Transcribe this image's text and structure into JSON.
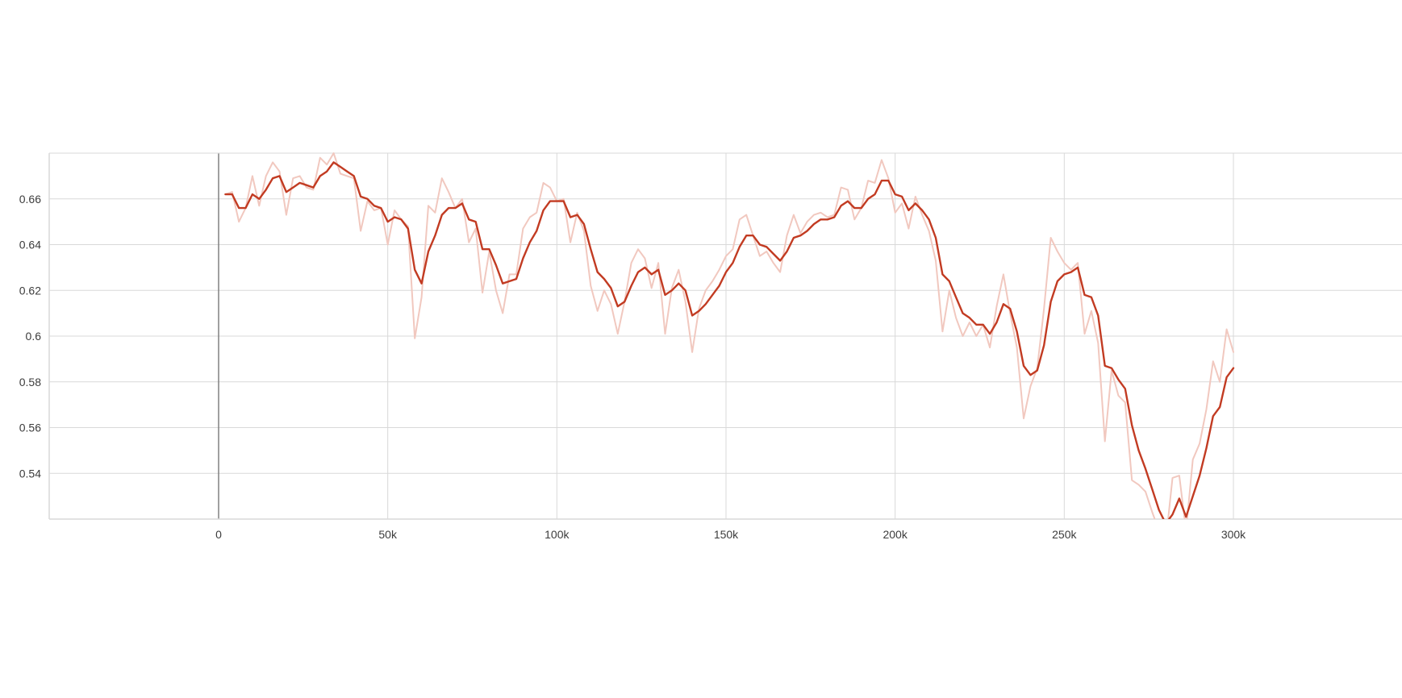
{
  "chart_data": {
    "type": "line",
    "title": "",
    "xlabel": "",
    "ylabel": "",
    "xlim": [
      -50000,
      350000
    ],
    "ylim": [
      0.52,
      0.68
    ],
    "x_ticks": [
      0,
      50000,
      100000,
      150000,
      200000,
      250000,
      300000
    ],
    "x_tick_labels": [
      "0",
      "50k",
      "100k",
      "150k",
      "200k",
      "250k",
      "300k"
    ],
    "y_ticks": [
      0.54,
      0.56,
      0.58,
      0.6,
      0.62,
      0.64,
      0.66
    ],
    "y_tick_labels": [
      "0.54",
      "0.56",
      "0.58",
      "0.6",
      "0.62",
      "0.64",
      "0.66"
    ],
    "grid": true,
    "legend": "none",
    "colors": {
      "smoothed": "#c23b22",
      "raw": "#f1c8bf",
      "grid": "#d9d9d9",
      "zero_line": "#808080"
    },
    "series": [
      {
        "role": "raw",
        "x": [
          2000,
          4000,
          6000,
          8000,
          10000,
          12000,
          14000,
          16000,
          18000,
          20000,
          22000,
          24000,
          26000,
          28000,
          30000,
          32000,
          34000,
          36000,
          38000,
          40000,
          42000,
          44000,
          46000,
          48000,
          50000,
          52000,
          54000,
          56000,
          58000,
          60000,
          62000,
          64000,
          66000,
          68000,
          70000,
          72000,
          74000,
          76000,
          78000,
          80000,
          82000,
          84000,
          86000,
          88000,
          90000,
          92000,
          94000,
          96000,
          98000,
          100000,
          102000,
          104000,
          106000,
          108000,
          110000,
          112000,
          114000,
          116000,
          118000,
          120000,
          122000,
          124000,
          126000,
          128000,
          130000,
          132000,
          134000,
          136000,
          138000,
          140000,
          142000,
          144000,
          146000,
          148000,
          150000,
          152000,
          154000,
          156000,
          158000,
          160000,
          162000,
          164000,
          166000,
          168000,
          170000,
          172000,
          174000,
          176000,
          178000,
          180000,
          182000,
          184000,
          186000,
          188000,
          190000,
          192000,
          194000,
          196000,
          198000,
          200000,
          202000,
          204000,
          206000,
          208000,
          210000,
          212000,
          214000,
          216000,
          218000,
          220000,
          222000,
          224000,
          226000,
          228000,
          230000,
          232000,
          234000,
          236000,
          238000,
          240000,
          242000,
          244000,
          246000,
          248000,
          250000,
          252000,
          254000,
          256000,
          258000,
          260000,
          262000,
          264000,
          266000,
          268000,
          270000,
          272000,
          274000,
          276000,
          278000,
          280000,
          282000,
          284000,
          286000,
          288000,
          290000,
          292000,
          294000,
          296000,
          298000,
          300000
        ],
        "y": [
          0.662,
          0.663,
          0.65,
          0.656,
          0.67,
          0.657,
          0.67,
          0.676,
          0.672,
          0.653,
          0.669,
          0.67,
          0.665,
          0.664,
          0.678,
          0.675,
          0.68,
          0.671,
          0.67,
          0.669,
          0.646,
          0.659,
          0.655,
          0.656,
          0.64,
          0.655,
          0.651,
          0.648,
          0.599,
          0.617,
          0.657,
          0.654,
          0.669,
          0.663,
          0.656,
          0.66,
          0.641,
          0.647,
          0.619,
          0.637,
          0.62,
          0.61,
          0.627,
          0.627,
          0.647,
          0.652,
          0.654,
          0.667,
          0.665,
          0.659,
          0.66,
          0.641,
          0.654,
          0.646,
          0.622,
          0.611,
          0.62,
          0.614,
          0.601,
          0.615,
          0.632,
          0.638,
          0.634,
          0.621,
          0.632,
          0.601,
          0.621,
          0.629,
          0.615,
          0.593,
          0.612,
          0.62,
          0.624,
          0.629,
          0.635,
          0.638,
          0.651,
          0.653,
          0.644,
          0.635,
          0.637,
          0.632,
          0.628,
          0.644,
          0.653,
          0.645,
          0.65,
          0.653,
          0.654,
          0.652,
          0.653,
          0.665,
          0.664,
          0.651,
          0.656,
          0.668,
          0.667,
          0.677,
          0.669,
          0.654,
          0.658,
          0.647,
          0.661,
          0.653,
          0.646,
          0.633,
          0.602,
          0.62,
          0.608,
          0.6,
          0.606,
          0.6,
          0.605,
          0.595,
          0.613,
          0.627,
          0.61,
          0.595,
          0.564,
          0.578,
          0.586,
          0.612,
          0.643,
          0.637,
          0.632,
          0.629,
          0.632,
          0.601,
          0.611,
          0.597,
          0.554,
          0.585,
          0.574,
          0.571,
          0.537,
          0.535,
          0.532,
          0.523,
          0.515,
          0.51,
          0.538,
          0.539,
          0.515,
          0.546,
          0.553,
          0.568,
          0.589,
          0.58,
          0.603,
          0.593
        ]
      },
      {
        "role": "smoothed",
        "x": [
          2000,
          4000,
          6000,
          8000,
          10000,
          12000,
          14000,
          16000,
          18000,
          20000,
          22000,
          24000,
          26000,
          28000,
          30000,
          32000,
          34000,
          36000,
          38000,
          40000,
          42000,
          44000,
          46000,
          48000,
          50000,
          52000,
          54000,
          56000,
          58000,
          60000,
          62000,
          64000,
          66000,
          68000,
          70000,
          72000,
          74000,
          76000,
          78000,
          80000,
          82000,
          84000,
          86000,
          88000,
          90000,
          92000,
          94000,
          96000,
          98000,
          100000,
          102000,
          104000,
          106000,
          108000,
          110000,
          112000,
          114000,
          116000,
          118000,
          120000,
          122000,
          124000,
          126000,
          128000,
          130000,
          132000,
          134000,
          136000,
          138000,
          140000,
          142000,
          144000,
          146000,
          148000,
          150000,
          152000,
          154000,
          156000,
          158000,
          160000,
          162000,
          164000,
          166000,
          168000,
          170000,
          172000,
          174000,
          176000,
          178000,
          180000,
          182000,
          184000,
          186000,
          188000,
          190000,
          192000,
          194000,
          196000,
          198000,
          200000,
          202000,
          204000,
          206000,
          208000,
          210000,
          212000,
          214000,
          216000,
          218000,
          220000,
          222000,
          224000,
          226000,
          228000,
          230000,
          232000,
          234000,
          236000,
          238000,
          240000,
          242000,
          244000,
          246000,
          248000,
          250000,
          252000,
          254000,
          256000,
          258000,
          260000,
          262000,
          264000,
          266000,
          268000,
          270000,
          272000,
          274000,
          276000,
          278000,
          280000,
          282000,
          284000,
          286000,
          288000,
          290000,
          292000,
          294000,
          296000,
          298000,
          300000
        ],
        "y": [
          0.662,
          0.662,
          0.656,
          0.656,
          0.662,
          0.66,
          0.664,
          0.669,
          0.67,
          0.663,
          0.665,
          0.667,
          0.666,
          0.665,
          0.67,
          0.672,
          0.676,
          0.674,
          0.672,
          0.67,
          0.661,
          0.66,
          0.657,
          0.656,
          0.65,
          0.652,
          0.651,
          0.647,
          0.629,
          0.623,
          0.637,
          0.644,
          0.653,
          0.656,
          0.656,
          0.658,
          0.651,
          0.65,
          0.638,
          0.638,
          0.631,
          0.623,
          0.624,
          0.625,
          0.634,
          0.641,
          0.646,
          0.655,
          0.659,
          0.659,
          0.659,
          0.652,
          0.653,
          0.649,
          0.638,
          0.628,
          0.625,
          0.621,
          0.613,
          0.615,
          0.622,
          0.628,
          0.63,
          0.627,
          0.629,
          0.618,
          0.62,
          0.623,
          0.62,
          0.609,
          0.611,
          0.614,
          0.618,
          0.622,
          0.628,
          0.632,
          0.639,
          0.644,
          0.644,
          0.64,
          0.639,
          0.636,
          0.633,
          0.637,
          0.643,
          0.644,
          0.646,
          0.649,
          0.651,
          0.651,
          0.652,
          0.657,
          0.659,
          0.656,
          0.656,
          0.66,
          0.662,
          0.668,
          0.668,
          0.662,
          0.661,
          0.655,
          0.658,
          0.655,
          0.651,
          0.643,
          0.627,
          0.624,
          0.617,
          0.61,
          0.608,
          0.605,
          0.605,
          0.601,
          0.606,
          0.614,
          0.612,
          0.602,
          0.587,
          0.583,
          0.585,
          0.596,
          0.615,
          0.624,
          0.627,
          0.628,
          0.63,
          0.618,
          0.617,
          0.609,
          0.587,
          0.586,
          0.581,
          0.577,
          0.561,
          0.55,
          0.542,
          0.533,
          0.524,
          0.518,
          0.522,
          0.529,
          0.521,
          0.53,
          0.539,
          0.551,
          0.565,
          0.569,
          0.582,
          0.586
        ]
      }
    ]
  }
}
